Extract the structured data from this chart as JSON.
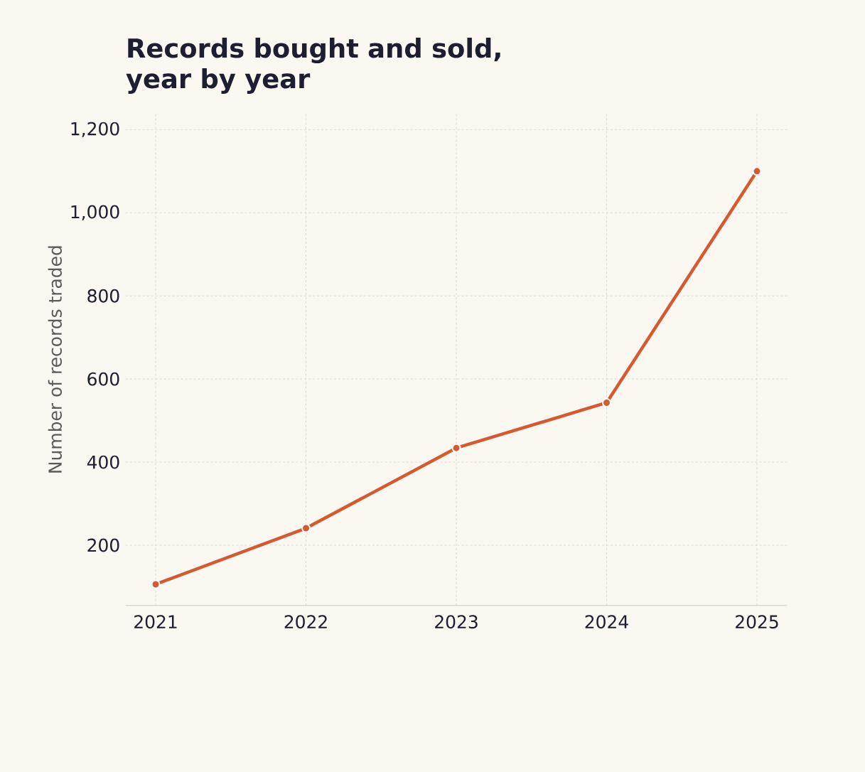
{
  "chart_data": {
    "type": "line",
    "title": "Records bought and sold, year by year",
    "ylabel": "Number of records traded",
    "x": [
      2021,
      2022,
      2023,
      2024,
      2025
    ],
    "series": [
      {
        "color": "#d65a31",
        "values": [
          106,
          241,
          434,
          543,
          1100
        ]
      }
    ],
    "xlim": [
      2020.8,
      2025.2
    ],
    "xticks": [
      2021,
      2022,
      2023,
      2024,
      2025
    ],
    "ylim": [
      55,
      1239
    ],
    "yticks": [
      200,
      400,
      600,
      800,
      {
        "value": 1000,
        "label": "1,000"
      },
      {
        "value": 1200,
        "label": "1,200"
      }
    ],
    "grid": true,
    "marker": "circle",
    "line_style": "solid"
  }
}
